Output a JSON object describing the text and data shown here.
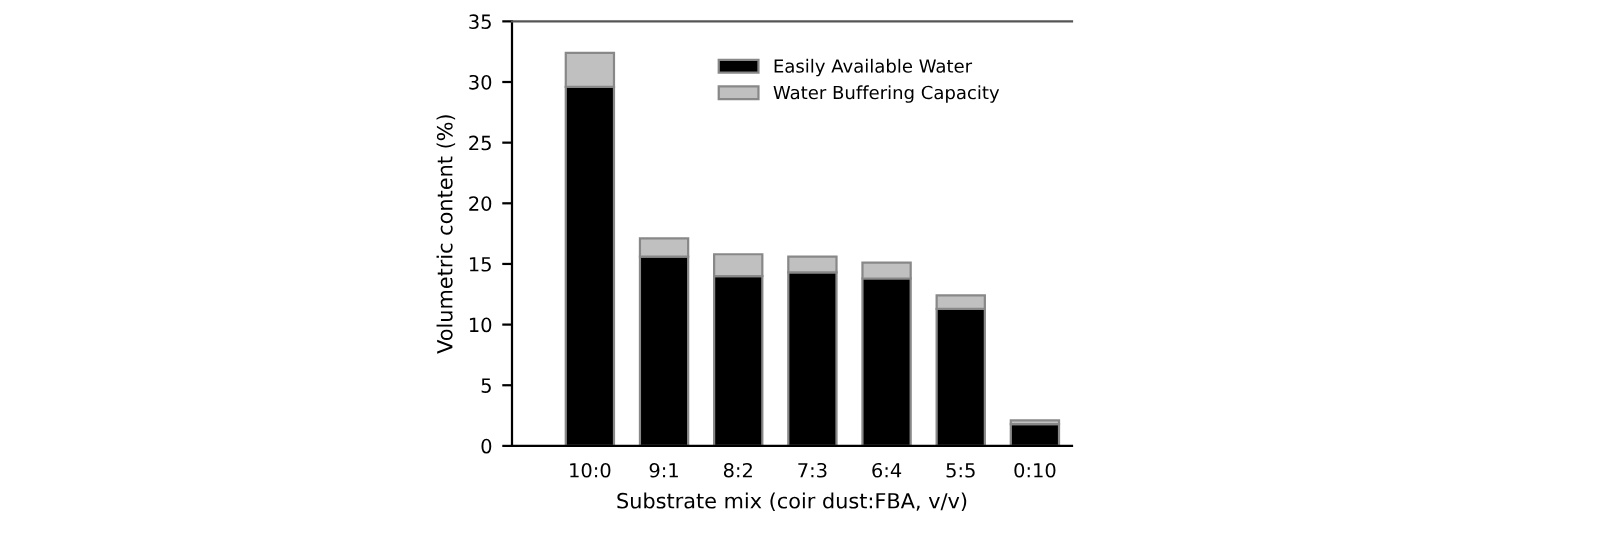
{
  "chart_data": {
    "type": "bar",
    "stacked": true,
    "xlabel": "Substrate mix (coir dust:FBA, v/v)",
    "ylabel": "Volumetric content (%)",
    "categories": [
      "10:0",
      "9:1",
      "8:2",
      "7:3",
      "6:4",
      "5:5",
      "0:10"
    ],
    "series": [
      {
        "name": "Easily Available Water",
        "color": "#000000",
        "values": [
          29.6,
          15.6,
          14.0,
          14.3,
          13.8,
          11.3,
          1.8
        ]
      },
      {
        "name": "Water Buffering Capacity",
        "color": "#c0c0c0",
        "values": [
          2.8,
          1.5,
          1.8,
          1.3,
          1.3,
          1.1,
          0.3
        ]
      }
    ],
    "ylim": [
      0,
      35
    ],
    "yticks": [
      0,
      5,
      10,
      15,
      20,
      25,
      30,
      35
    ],
    "grid": false,
    "legend": "top"
  }
}
